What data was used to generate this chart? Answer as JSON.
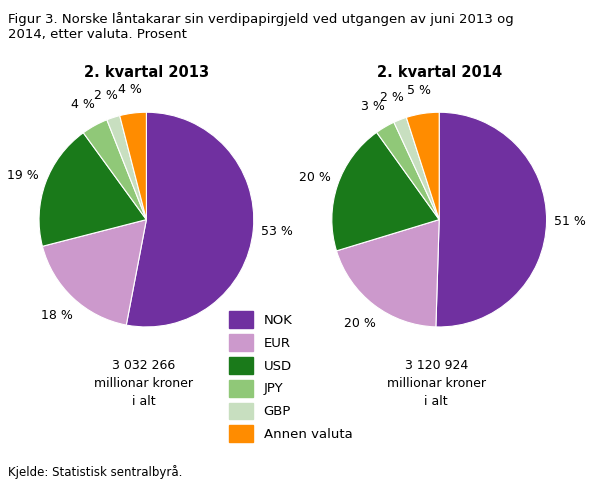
{
  "title": "Figur 3. Norske låntakarar sin verdipapirgjeld ved utgangen av juni 2013 og\n2014, etter valuta. Prosent",
  "pie1_title": "2. kvartal 2013",
  "pie2_title": "2. kvartal 2014",
  "pie1_values": [
    53,
    18,
    19,
    4,
    2,
    4
  ],
  "pie2_values": [
    51,
    20,
    20,
    3,
    2,
    5
  ],
  "pie1_labels": [
    "53 %",
    "18 %",
    "19 %",
    "4 %",
    "2 %",
    "4 %"
  ],
  "pie2_labels": [
    "51 %",
    "20 %",
    "20 %",
    "3 %",
    "2 %",
    "5 %"
  ],
  "colors": [
    "#7030a0",
    "#cc99cc",
    "#1a7a1a",
    "#90c878",
    "#c8dfc0",
    "#ff8c00"
  ],
  "legend_labels": [
    "NOK",
    "EUR",
    "USD",
    "JPY",
    "GBP",
    "Annen valuta"
  ],
  "pie1_total": "3 032 266\nmillionar kroner\ni alt",
  "pie2_total": "3 120 924\nmillionar kroner\ni alt",
  "source": "Kjelde: Statistisk sentralbyrå.",
  "bg_color": "#ffffff",
  "text_color": "#000000",
  "title_fontsize": 9.5,
  "label_fontsize": 9,
  "subtitle_fontsize": 10.5
}
